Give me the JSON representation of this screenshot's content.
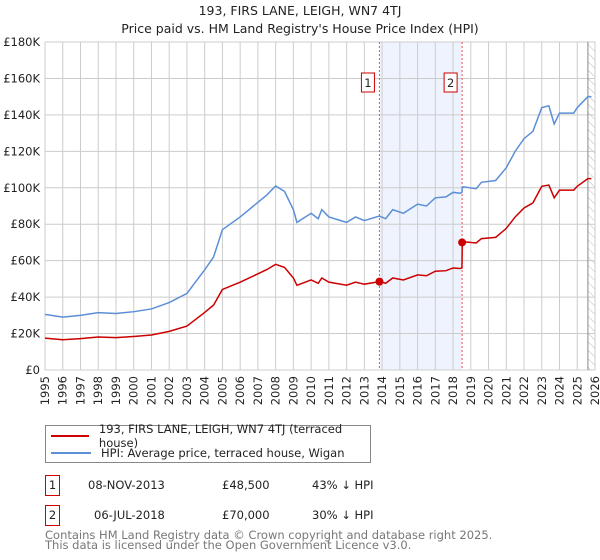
{
  "chart_data": {
    "type": "line",
    "title": "193, FIRS LANE, LEIGH, WN7 4TJ",
    "subtitle": "Price paid vs. HM Land Registry's House Price Index (HPI)",
    "xlim": [
      1995,
      2026
    ],
    "ylim": [
      0,
      180000
    ],
    "y_ticks": [
      0,
      20000,
      40000,
      60000,
      80000,
      100000,
      120000,
      140000,
      160000,
      180000
    ],
    "y_tick_labels": [
      "£0",
      "£20K",
      "£40K",
      "£60K",
      "£80K",
      "£100K",
      "£120K",
      "£140K",
      "£160K",
      "£180K"
    ],
    "x_ticks": [
      1995,
      1996,
      1997,
      1998,
      1999,
      2000,
      2001,
      2002,
      2003,
      2004,
      2005,
      2006,
      2007,
      2008,
      2009,
      2010,
      2011,
      2012,
      2013,
      2014,
      2015,
      2016,
      2017,
      2018,
      2019,
      2020,
      2021,
      2022,
      2023,
      2024,
      2025,
      2026
    ],
    "grid": true,
    "series": [
      {
        "name": "193, FIRS LANE, LEIGH, WN7 4TJ (terraced house)",
        "color": "#cc0000",
        "x": [
          1995,
          1996,
          1997,
          1998,
          1999,
          2000,
          2001,
          2002,
          2003,
          2004,
          2004.5,
          2005,
          2006,
          2007,
          2007.5,
          2008,
          2008.5,
          2009,
          2009.2,
          2010,
          2010.4,
          2010.6,
          2011,
          2012,
          2012.5,
          2013,
          2013.85,
          2014.2,
          2014.6,
          2015.2,
          2016,
          2016.5,
          2017,
          2017.6,
          2018,
          2018.4,
          2018.5,
          2018.52,
          2018.6,
          2019.3,
          2019.6,
          2020.4,
          2021,
          2021.5,
          2022,
          2022.5,
          2023,
          2023.4,
          2023.7,
          2024,
          2024.8,
          2025,
          2025.6,
          2025.8
        ],
        "y": [
          17500,
          16600,
          17200,
          18100,
          17800,
          18400,
          19200,
          21200,
          24100,
          31600,
          35600,
          44200,
          48200,
          52800,
          55100,
          58000,
          56300,
          50500,
          46500,
          49400,
          47600,
          50500,
          48200,
          46500,
          48200,
          47100,
          48500,
          47600,
          50500,
          49400,
          52200,
          51700,
          54200,
          54500,
          56000,
          55700,
          56000,
          70000,
          70400,
          69700,
          72100,
          72800,
          77700,
          84000,
          88900,
          91700,
          100800,
          101500,
          94500,
          98700,
          98700,
          100800,
          105000,
          105000
        ]
      },
      {
        "name": "HPI: Average price, terraced house, Wigan",
        "color": "#5b8fd6",
        "x": [
          1995,
          1996,
          1997,
          1998,
          1999,
          2000,
          2001,
          2002,
          2003,
          2004,
          2004.5,
          2005,
          2006,
          2007,
          2007.5,
          2008,
          2008.5,
          2009,
          2009.2,
          2010,
          2010.4,
          2010.6,
          2011,
          2012,
          2012.5,
          2013,
          2013.85,
          2014.2,
          2014.6,
          2015.2,
          2016,
          2016.5,
          2017,
          2017.6,
          2018,
          2018.4,
          2018.5,
          2018.52,
          2018.6,
          2019.3,
          2019.6,
          2020.4,
          2021,
          2021.5,
          2022,
          2022.5,
          2023,
          2023.4,
          2023.7,
          2024,
          2024.8,
          2025,
          2025.6,
          2025.8
        ],
        "y": [
          30500,
          29000,
          30000,
          31500,
          31000,
          32000,
          33500,
          37000,
          42000,
          55000,
          62000,
          77000,
          84000,
          92000,
          96000,
          101000,
          98000,
          88000,
          81000,
          86000,
          83000,
          88000,
          84000,
          81000,
          84000,
          82000,
          84500,
          83000,
          88000,
          86000,
          91000,
          90000,
          94500,
          95000,
          97500,
          97000,
          97500,
          100000,
          100500,
          99500,
          103000,
          104000,
          111000,
          120000,
          127000,
          131000,
          144000,
          145000,
          135000,
          141000,
          141000,
          144000,
          150000,
          150000
        ]
      }
    ],
    "sales": [
      {
        "label": "1",
        "x": 2013.85,
        "y": 48500
      },
      {
        "label": "2",
        "x": 2018.51,
        "y": 70000
      }
    ],
    "hatched_from": 2025.6
  },
  "legend": [
    "193, FIRS LANE, LEIGH, WN7 4TJ (terraced house)",
    "HPI: Average price, terraced house, Wigan"
  ],
  "table": [
    {
      "num": "1",
      "date": "08-NOV-2013",
      "price": "£48,500",
      "hpi": "43% ↓ HPI"
    },
    {
      "num": "2",
      "date": "06-JUL-2018",
      "price": "£70,000",
      "hpi": "30% ↓ HPI"
    }
  ],
  "footer": [
    "Contains HM Land Registry data © Crown copyright and database right 2025.",
    "This data is licensed under the Open Government Licence v3.0."
  ]
}
